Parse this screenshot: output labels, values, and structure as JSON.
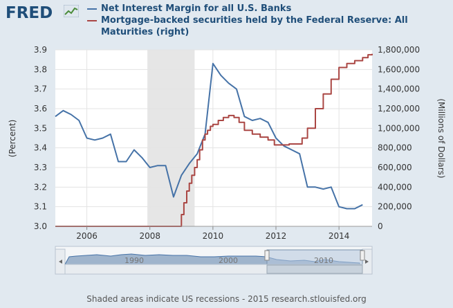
{
  "brand": {
    "logo_text": "FRED",
    "logo_icon": "chart-graph-icon"
  },
  "legend": [
    {
      "label": "Net Interest Margin for all U.S. Banks",
      "color": "#4572a7"
    },
    {
      "label": "Mortgage-backed securities held by the Federal Reserve: All Maturities (right)",
      "color": "#aa4643"
    }
  ],
  "chart_data": {
    "type": "line",
    "ylabel_left": "(Percent)",
    "ylabel_right": "(Millions of Dollars)",
    "x_ticks": [
      "2006",
      "2008",
      "2010",
      "2012",
      "2014"
    ],
    "y_left_ticks": [
      "3.0",
      "3.1",
      "3.2",
      "3.3",
      "3.4",
      "3.5",
      "3.6",
      "3.7",
      "3.8",
      "3.9"
    ],
    "y_right_ticks": [
      "0",
      "200,000",
      "400,000",
      "600,000",
      "800,000",
      "1,000,000",
      "1,200,000",
      "1,400,000",
      "1,600,000",
      "1,800,000"
    ],
    "xlim": [
      2005.0,
      2015.05
    ],
    "ylim_left": [
      3.0,
      3.9
    ],
    "ylim_right": [
      0,
      1800000
    ],
    "grid": true,
    "recession": [
      2007.92,
      2009.42
    ],
    "series": [
      {
        "name": "Net Interest Margin for all U.S. Banks",
        "axis": "left",
        "x": [
          2005.0,
          2005.25,
          2005.5,
          2005.75,
          2006.0,
          2006.25,
          2006.5,
          2006.75,
          2007.0,
          2007.25,
          2007.5,
          2007.75,
          2008.0,
          2008.25,
          2008.5,
          2008.75,
          2009.0,
          2009.25,
          2009.5,
          2009.75,
          2010.0,
          2010.25,
          2010.5,
          2010.75,
          2011.0,
          2011.25,
          2011.5,
          2011.75,
          2012.0,
          2012.25,
          2012.5,
          2012.75,
          2013.0,
          2013.25,
          2013.5,
          2013.75,
          2014.0,
          2014.25,
          2014.5,
          2014.75
        ],
        "y": [
          3.56,
          3.59,
          3.57,
          3.54,
          3.45,
          3.44,
          3.45,
          3.47,
          3.33,
          3.33,
          3.39,
          3.35,
          3.3,
          3.31,
          3.31,
          3.15,
          3.26,
          3.32,
          3.37,
          3.47,
          3.83,
          3.77,
          3.73,
          3.7,
          3.56,
          3.54,
          3.55,
          3.53,
          3.45,
          3.41,
          3.39,
          3.37,
          3.2,
          3.2,
          3.19,
          3.2,
          3.1,
          3.09,
          3.09,
          3.11
        ]
      },
      {
        "name": "Mortgage-backed securities held by the Federal Reserve: All Maturities (right)",
        "axis": "right",
        "x": [
          2005.0,
          2008.5,
          2008.95,
          2009.0,
          2009.08,
          2009.17,
          2009.25,
          2009.33,
          2009.42,
          2009.5,
          2009.58,
          2009.67,
          2009.75,
          2009.83,
          2009.92,
          2010.0,
          2010.17,
          2010.33,
          2010.5,
          2010.67,
          2010.83,
          2011.0,
          2011.25,
          2011.5,
          2011.75,
          2011.95,
          2012.17,
          2012.42,
          2012.67,
          2012.83,
          2013.0,
          2013.25,
          2013.5,
          2013.75,
          2014.0,
          2014.25,
          2014.5,
          2014.75,
          2014.92,
          2015.05
        ],
        "y": [
          0,
          0,
          0,
          120000,
          240000,
          360000,
          440000,
          520000,
          600000,
          680000,
          780000,
          880000,
          940000,
          980000,
          1020000,
          1040000,
          1080000,
          1110000,
          1130000,
          1110000,
          1060000,
          980000,
          940000,
          910000,
          880000,
          830000,
          830000,
          840000,
          840000,
          900000,
          1000000,
          1200000,
          1350000,
          1500000,
          1620000,
          1660000,
          1690000,
          1720000,
          1750000,
          1760000
        ]
      }
    ]
  },
  "navigator": {
    "tick_labels": [
      "1990",
      "2000",
      "2010"
    ]
  },
  "footer": {
    "text": "Shaded areas indicate US recessions - 2015 research.stlouisfed.org"
  }
}
